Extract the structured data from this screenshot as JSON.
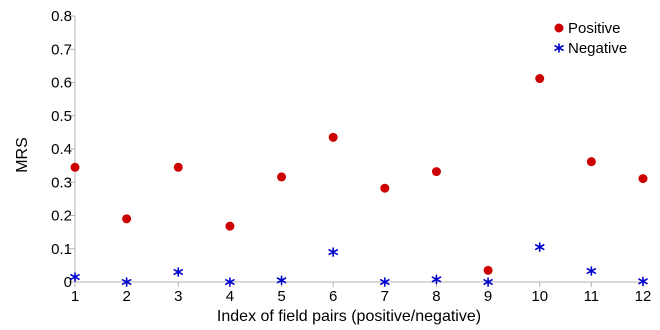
{
  "chart_data": {
    "type": "scatter",
    "title": "",
    "xlabel": "Index of field pairs (positive/negative)",
    "ylabel": "MRS",
    "xlim": [
      1,
      12
    ],
    "ylim": [
      0,
      0.8
    ],
    "x_ticks": [
      "1",
      "2",
      "3",
      "4",
      "5",
      "6",
      "7",
      "8",
      "9",
      "10",
      "11",
      "12"
    ],
    "y_ticks": [
      "0",
      "0.1",
      "0.2",
      "0.3",
      "0.4",
      "0.5",
      "0.6",
      "0.7",
      "0.8"
    ],
    "grid": false,
    "legend": {
      "placement": "top-right",
      "entries": [
        "Positive",
        "Negative"
      ]
    },
    "series": [
      {
        "name": "Positive",
        "marker": "circle",
        "color": "#cc0000",
        "x": [
          1,
          2,
          3,
          4,
          5,
          6,
          7,
          8,
          9,
          10,
          11,
          12
        ],
        "y": [
          0.345,
          0.19,
          0.345,
          0.168,
          0.316,
          0.435,
          0.282,
          0.332,
          0.035,
          0.612,
          0.362,
          0.311
        ]
      },
      {
        "name": "Negative",
        "marker": "asterisk",
        "color": "#0000cc",
        "x": [
          1,
          2,
          3,
          4,
          5,
          6,
          7,
          8,
          9,
          10,
          11,
          12
        ],
        "y": [
          0.015,
          0.0,
          0.03,
          0.0,
          0.005,
          0.09,
          0.0,
          0.008,
          0.0,
          0.105,
          0.033,
          0.002
        ]
      }
    ]
  }
}
